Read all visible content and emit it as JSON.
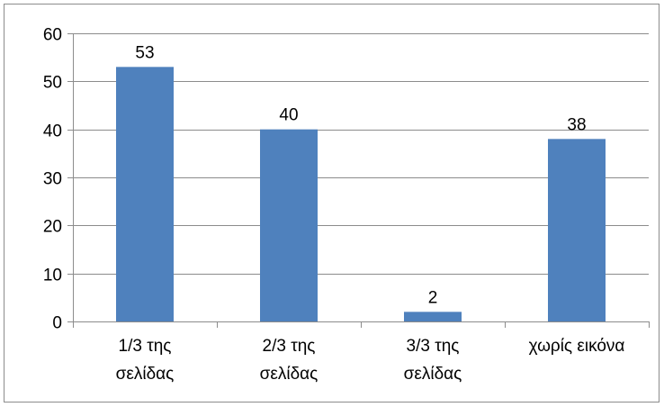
{
  "chart_data": {
    "type": "bar",
    "categories": [
      [
        "1/3 της",
        "σελίδας"
      ],
      [
        "2/3 της",
        "σελίδας"
      ],
      [
        "3/3 της",
        "σελίδας"
      ],
      [
        "χωρίς εικόνα"
      ]
    ],
    "values": [
      53,
      40,
      2,
      38
    ],
    "data_labels": [
      "53",
      "40",
      "2",
      "38"
    ],
    "yticks": [
      0,
      10,
      20,
      30,
      40,
      50,
      60
    ],
    "ylim": [
      0,
      60
    ],
    "grid": true,
    "legend": "none",
    "colors": {
      "bar": "#4f81bd",
      "grid": "#8c8c8c",
      "axis": "#8c8c8c",
      "frame": "#8c8c8c"
    }
  }
}
